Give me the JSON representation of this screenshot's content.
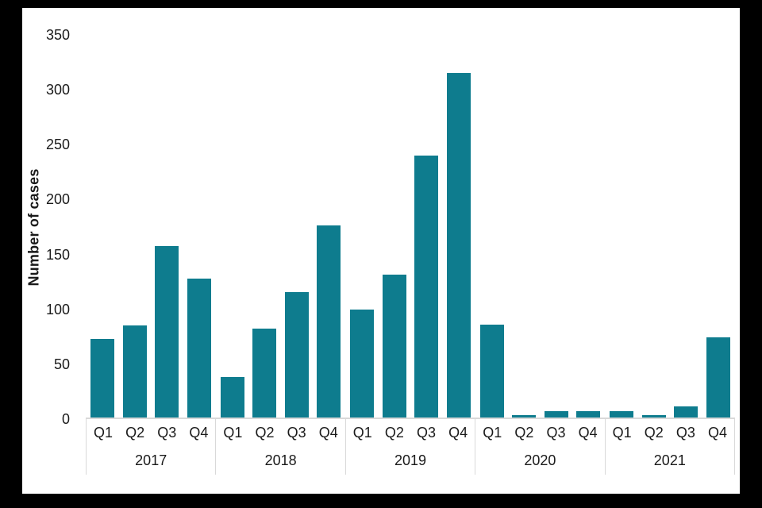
{
  "colors": {
    "bar": "#0e7c8e",
    "axis": "#d9d9d9",
    "text": "#1a1a1a",
    "frame": "#000000",
    "background": "#ffffff"
  },
  "chart_data": {
    "type": "bar",
    "title": "",
    "xlabel": "",
    "ylabel": "Number of cases",
    "ylim": [
      0,
      350
    ],
    "yticks": [
      0,
      50,
      100,
      150,
      200,
      250,
      300,
      350
    ],
    "grid": false,
    "legend": false,
    "bar_color": "#0e7c8e",
    "categories": [
      "Q1",
      "Q2",
      "Q3",
      "Q4",
      "Q1",
      "Q2",
      "Q3",
      "Q4",
      "Q1",
      "Q2",
      "Q3",
      "Q4",
      "Q1",
      "Q2",
      "Q3",
      "Q4",
      "Q1",
      "Q2",
      "Q3",
      "Q4"
    ],
    "values": [
      72,
      84,
      157,
      127,
      37,
      81,
      115,
      176,
      99,
      131,
      240,
      315,
      85,
      2,
      6,
      6,
      6,
      2,
      10,
      73
    ],
    "groups": [
      {
        "year": "2017",
        "quarters": [
          "Q1",
          "Q2",
          "Q3",
          "Q4"
        ],
        "values": [
          72,
          84,
          157,
          127
        ]
      },
      {
        "year": "2018",
        "quarters": [
          "Q1",
          "Q2",
          "Q3",
          "Q4"
        ],
        "values": [
          37,
          81,
          115,
          176
        ]
      },
      {
        "year": "2019",
        "quarters": [
          "Q1",
          "Q2",
          "Q3",
          "Q4"
        ],
        "values": [
          99,
          131,
          240,
          315
        ]
      },
      {
        "year": "2020",
        "quarters": [
          "Q1",
          "Q2",
          "Q3",
          "Q4"
        ],
        "values": [
          85,
          2,
          6,
          6
        ]
      },
      {
        "year": "2021",
        "quarters": [
          "Q1",
          "Q2",
          "Q3",
          "Q4"
        ],
        "values": [
          6,
          2,
          10,
          73
        ]
      }
    ]
  }
}
